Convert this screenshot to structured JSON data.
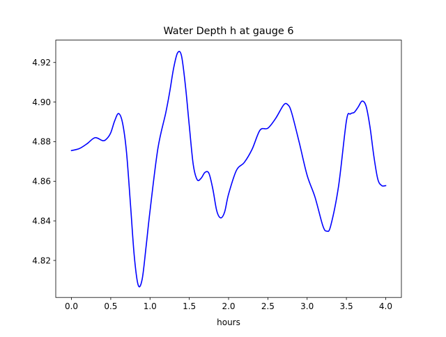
{
  "chart_data": {
    "type": "line",
    "title": "Water Depth h at gauge 6",
    "xlabel": "hours",
    "ylabel": "",
    "xlim": [
      -0.2,
      4.2
    ],
    "ylim": [
      4.8013,
      4.9313
    ],
    "x_ticks": [
      0.0,
      0.5,
      1.0,
      1.5,
      2.0,
      2.5,
      3.0,
      3.5,
      4.0
    ],
    "x_tick_labels": [
      "0.0",
      "0.5",
      "1.0",
      "1.5",
      "2.0",
      "2.5",
      "3.0",
      "3.5",
      "4.0"
    ],
    "y_ticks": [
      4.82,
      4.84,
      4.86,
      4.88,
      4.9,
      4.92
    ],
    "y_tick_labels": [
      "4.82",
      "4.84",
      "4.86",
      "4.88",
      "4.90",
      "4.92"
    ],
    "grid": false,
    "legend": "none",
    "series": [
      {
        "color": "#0000ff",
        "x": [
          0.0,
          0.1,
          0.2,
          0.3,
          0.4,
          0.45,
          0.5,
          0.55,
          0.6,
          0.65,
          0.7,
          0.75,
          0.8,
          0.85,
          0.9,
          0.95,
          1.0,
          1.1,
          1.2,
          1.25,
          1.3,
          1.35,
          1.4,
          1.45,
          1.5,
          1.55,
          1.6,
          1.65,
          1.7,
          1.75,
          1.8,
          1.85,
          1.9,
          1.95,
          2.0,
          2.1,
          2.2,
          2.3,
          2.4,
          2.5,
          2.6,
          2.7,
          2.75,
          2.8,
          2.9,
          3.0,
          3.1,
          3.2,
          3.25,
          3.3,
          3.4,
          3.5,
          3.55,
          3.6,
          3.65,
          3.7,
          3.75,
          3.8,
          3.85,
          3.9,
          3.95,
          4.0
        ],
        "y": [
          4.8755,
          4.8765,
          4.879,
          4.882,
          4.8805,
          4.8815,
          4.8845,
          4.8905,
          4.8942,
          4.8895,
          4.875,
          4.849,
          4.822,
          4.8075,
          4.8105,
          4.827,
          4.845,
          4.8765,
          4.8945,
          4.905,
          4.917,
          4.9248,
          4.9235,
          4.9085,
          4.888,
          4.8685,
          4.8608,
          4.8615,
          4.8645,
          4.864,
          4.856,
          4.845,
          4.8415,
          4.8445,
          4.8535,
          4.8655,
          4.8695,
          4.8762,
          4.8858,
          4.8868,
          4.8918,
          4.8985,
          4.8988,
          4.895,
          4.8795,
          4.863,
          4.852,
          4.8375,
          4.8348,
          4.8375,
          4.8575,
          4.8905,
          4.894,
          4.8948,
          4.8975,
          4.9005,
          4.898,
          4.8875,
          4.8725,
          4.861,
          4.8578,
          4.8578
        ]
      }
    ]
  }
}
